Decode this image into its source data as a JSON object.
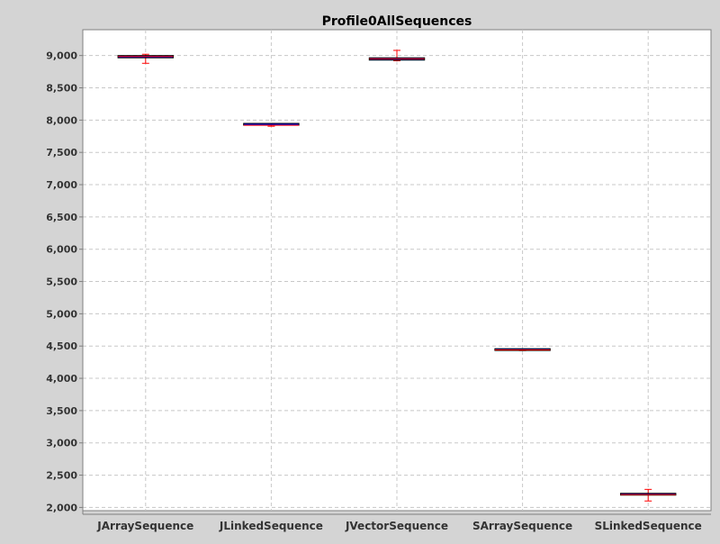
{
  "chart_data": {
    "type": "boxplot",
    "title": "Profile0AllSequences",
    "xlabel": "",
    "ylabel": "",
    "ylim": [
      1950,
      9400
    ],
    "yticks": [
      2000,
      2500,
      3000,
      3500,
      4000,
      4500,
      5000,
      5500,
      6000,
      6500,
      7000,
      7500,
      8000,
      8500,
      9000
    ],
    "ytick_labels": [
      "2,000",
      "2,500",
      "3,000",
      "3,500",
      "4,000",
      "4,500",
      "5,000",
      "5,500",
      "6,000",
      "6,500",
      "7,000",
      "7,500",
      "8,000",
      "8,500",
      "9,000"
    ],
    "grid": true,
    "categories": [
      "JArraySequence",
      "JLinkedSequence",
      "JVectorSequence",
      "SArraySequence",
      "SLinkedSequence"
    ],
    "boxes": [
      {
        "min": 8880,
        "q1": 8965,
        "median": 8985,
        "q3": 9000,
        "max": 9020
      },
      {
        "min": 7905,
        "q1": 7910,
        "median": 7920,
        "q3": 7935,
        "max": 7945
      },
      {
        "min": 8920,
        "q1": 8930,
        "median": 8950,
        "q3": 8965,
        "max": 9080
      },
      {
        "min": 4430,
        "q1": 4438,
        "median": 4440,
        "q3": 4445,
        "max": 4450
      },
      {
        "min": 2100,
        "q1": 2195,
        "median": 2200,
        "q3": 2205,
        "max": 2280
      }
    ],
    "colors": {
      "background": "#d4d4d4",
      "plot_background": "#ffffff",
      "grid": "#c8c8c8",
      "box_fill": "#0000ff",
      "box_stroke": "#000000",
      "median": "#ff0000",
      "whisker": "#ff0000"
    }
  }
}
